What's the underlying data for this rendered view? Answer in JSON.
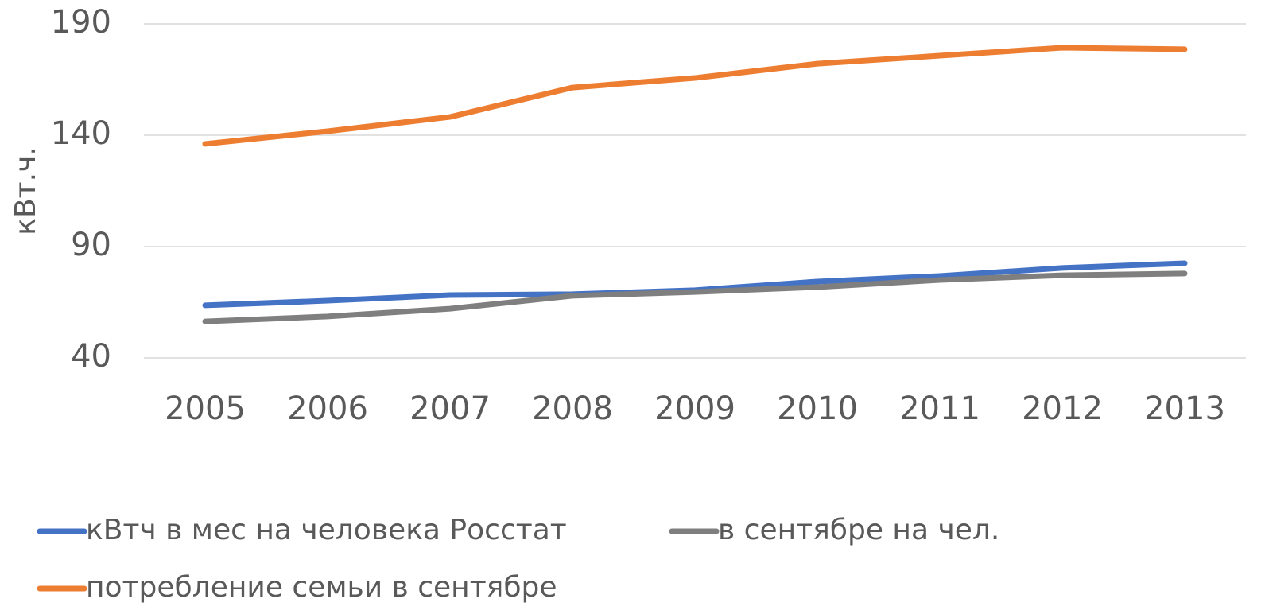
{
  "chart_data": {
    "type": "line",
    "y_label": "кВт.ч.",
    "categories": [
      "2005",
      "2006",
      "2007",
      "2008",
      "2009",
      "2010",
      "2011",
      "2012",
      "2013"
    ],
    "series": [
      {
        "name": "кВтч в мес на человека Росстат",
        "color": "#4472c4",
        "values": [
          63.6,
          65.7,
          68.2,
          68.6,
          70.4,
          74.3,
          76.8,
          80.4,
          82.5
        ]
      },
      {
        "name": "в сентябре на чел.",
        "color": "#7f7f7f",
        "values": [
          56.4,
          58.6,
          62.1,
          67.9,
          69.6,
          71.8,
          75.0,
          77.1,
          77.9
        ]
      },
      {
        "name": "потребление семьи в сентябре",
        "color": "#ed7d31",
        "values": [
          136.1,
          141.8,
          148.2,
          161.4,
          165.7,
          172.1,
          175.7,
          179.3,
          178.6
        ]
      }
    ],
    "ylim": [
      40,
      190
    ],
    "yticks": [
      40,
      90,
      140,
      190
    ],
    "grid": true
  }
}
